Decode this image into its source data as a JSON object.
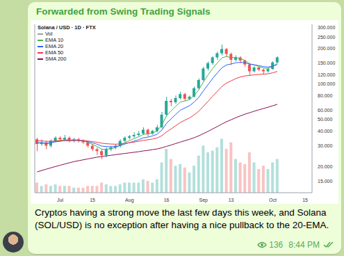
{
  "header": {
    "title": "Forwarded from Swing Trading Signals"
  },
  "chart_data": {
    "type": "candlestick",
    "title": "Solana / USD · 1D · FTX",
    "log": "y",
    "legend": "top-left",
    "ylim": [
      12,
      320
    ],
    "yticks": [
      {
        "value": 15,
        "label": "15.000"
      },
      {
        "value": 20,
        "label": "20.000"
      },
      {
        "value": 30,
        "label": "30.000"
      },
      {
        "value": 40,
        "label": "40.000"
      },
      {
        "value": 50,
        "label": "50.000"
      },
      {
        "value": 60,
        "label": "60.000"
      },
      {
        "value": 80,
        "label": "80.000"
      },
      {
        "value": 100,
        "label": "100.000"
      },
      {
        "value": 120,
        "label": "120.000"
      },
      {
        "value": 150,
        "label": "150.000"
      },
      {
        "value": 200,
        "label": "200.000"
      },
      {
        "value": 250,
        "label": "250.000"
      },
      {
        "value": 300,
        "label": "300.000"
      }
    ],
    "y2lim": [
      0,
      100
    ],
    "categories": [
      null,
      null,
      null,
      null,
      null,
      "Jul",
      null,
      null,
      null,
      null,
      null,
      null,
      "15",
      null,
      null,
      null,
      null,
      null,
      null,
      null,
      "Aug",
      null,
      null,
      null,
      null,
      null,
      null,
      null,
      "16",
      null,
      null,
      null,
      null,
      null,
      null,
      null,
      "Sep",
      null,
      null,
      null,
      null,
      null,
      "13",
      null,
      null,
      null,
      null,
      null,
      null,
      null,
      null,
      "Oct",
      null,
      null,
      null,
      null,
      null,
      null,
      "15",
      null
    ],
    "series": [
      {
        "type": "candlestick",
        "open": [
          34,
          31,
          32,
          30,
          33,
          35,
          34,
          35,
          33,
          34,
          33,
          32,
          30,
          28,
          27,
          25,
          28,
          29,
          30,
          33,
          35,
          36,
          37,
          38,
          41,
          38,
          40,
          43,
          55,
          72,
          70,
          76,
          82,
          75,
          78,
          92,
          108,
          135,
          150,
          168,
          182,
          198,
          180,
          160,
          168,
          158,
          146,
          128,
          138,
          132,
          128,
          134,
          152,
          null,
          null,
          null,
          null,
          null,
          null,
          null
        ],
        "high": [
          35,
          34,
          33,
          34,
          36,
          36,
          37,
          36,
          35,
          35,
          34,
          33,
          31,
          29,
          28,
          29,
          30,
          31,
          34,
          36,
          37,
          39,
          40,
          43,
          42,
          41,
          45,
          58,
          78,
          75,
          80,
          86,
          84,
          80,
          95,
          112,
          140,
          155,
          172,
          188,
          216,
          202,
          185,
          175,
          172,
          160,
          150,
          142,
          140,
          135,
          137,
          156,
          172,
          null,
          null,
          null,
          null,
          null,
          null,
          null
        ],
        "low": [
          27,
          30,
          28,
          29,
          32,
          33,
          33,
          32,
          32,
          32,
          31,
          29,
          27,
          25,
          23,
          24,
          27,
          28,
          29,
          32,
          34,
          35,
          36,
          37,
          36,
          37,
          39,
          42,
          53,
          65,
          68,
          74,
          72,
          73,
          77,
          90,
          105,
          130,
          145,
          160,
          175,
          170,
          145,
          155,
          150,
          140,
          118,
          125,
          128,
          120,
          125,
          132,
          150,
          null,
          null,
          null,
          null,
          null,
          null,
          null
        ],
        "close": [
          31,
          32,
          30,
          33,
          35,
          34,
          35,
          33,
          34,
          33,
          32,
          30,
          28,
          27,
          25,
          28,
          29,
          30,
          33,
          35,
          36,
          37,
          38,
          41,
          38,
          40,
          43,
          55,
          72,
          70,
          76,
          82,
          75,
          78,
          92,
          108,
          135,
          150,
          168,
          182,
          198,
          180,
          160,
          168,
          158,
          146,
          128,
          138,
          132,
          128,
          134,
          152,
          168,
          null,
          null,
          null,
          null,
          null,
          null,
          null
        ],
        "colors": [
          "#ef5350",
          "#26a69a",
          "#ef5350",
          "#26a69a",
          "#26a69a",
          "#ef5350",
          "#26a69a",
          "#ef5350",
          "#26a69a",
          "#ef5350",
          "#ef5350",
          "#ef5350",
          "#ef5350",
          "#ef5350",
          "#ef5350",
          "#26a69a",
          "#26a69a",
          "#26a69a",
          "#26a69a",
          "#26a69a",
          "#26a69a",
          "#26a69a",
          "#26a69a",
          "#26a69a",
          "#ef5350",
          "#26a69a",
          "#26a69a",
          "#26a69a",
          "#26a69a",
          "#ef5350",
          "#26a69a",
          "#26a69a",
          "#ef5350",
          "#26a69a",
          "#26a69a",
          "#26a69a",
          "#26a69a",
          "#26a69a",
          "#26a69a",
          "#26a69a",
          "#26a69a",
          "#ef5350",
          "#ef5350",
          "#26a69a",
          "#ef5350",
          "#ef5350",
          "#ef5350",
          "#26a69a",
          "#ef5350",
          "#ef5350",
          "#26a69a",
          "#26a69a",
          "#26a69a",
          null,
          null,
          null,
          null,
          null,
          null,
          null
        ]
      },
      {
        "name": "Vol",
        "type": "bar",
        "axis": "y2",
        "values": [
          6,
          4,
          5,
          4,
          5,
          4,
          4,
          4,
          3,
          3,
          3,
          4,
          4,
          4,
          6,
          5,
          4,
          4,
          5,
          6,
          6,
          6,
          6,
          8,
          7,
          6,
          8,
          18,
          26,
          20,
          16,
          17,
          15,
          12,
          16,
          22,
          28,
          24,
          25,
          27,
          32,
          26,
          30,
          20,
          18,
          17,
          24,
          18,
          14,
          16,
          14,
          18,
          20,
          null,
          null,
          null,
          null,
          null,
          null,
          null
        ]
      },
      {
        "name": "EMA 10",
        "type": "line",
        "color": "#4caf50",
        "values": [
          31.5,
          31.7,
          31.1,
          31.8,
          32.9,
          33.3,
          33.8,
          33.5,
          33.7,
          33.5,
          33.0,
          32.0,
          30.7,
          29.5,
          28.0,
          28.0,
          28.3,
          28.9,
          30.3,
          31.8,
          33.2,
          34.5,
          35.7,
          37.5,
          37.7,
          38.5,
          40.0,
          44.9,
          53.8,
          59.1,
          64.7,
          70.4,
          71.9,
          73.9,
          79.9,
          89.2,
          104.3,
          119.4,
          135.4,
          150.8,
          166.4,
          170.9,
          167.3,
          167.5,
          164.4,
          158.3,
          148.3,
          144.9,
          140.6,
          136.4,
          135.6,
          141.0,
          149.9,
          null,
          null,
          null,
          null,
          null,
          null,
          null
        ]
      },
      {
        "name": "EMA 20",
        "type": "line",
        "color": "#2962ff",
        "values": [
          31.8,
          31.8,
          31.5,
          31.8,
          32.4,
          32.7,
          33.1,
          33.1,
          33.3,
          33.2,
          33.0,
          32.5,
          31.7,
          30.9,
          29.8,
          29.5,
          29.4,
          29.5,
          30.1,
          31.0,
          31.9,
          32.8,
          33.7,
          35.0,
          35.5,
          36.3,
          37.5,
          40.7,
          46.3,
          50.6,
          55.2,
          60.0,
          62.7,
          65.5,
          70.3,
          77.1,
          87.5,
          98.8,
          111.3,
          124.0,
          137.3,
          145.0,
          147.7,
          151.3,
          152.5,
          151.4,
          147.2,
          145.5,
          143.1,
          140.4,
          139.2,
          141.6,
          146.3,
          null,
          null,
          null,
          null,
          null,
          null,
          null
        ]
      },
      {
        "name": "EMA 50",
        "type": "line",
        "color": "#f23645",
        "values": [
          33.0,
          32.9,
          32.7,
          32.7,
          32.9,
          33.0,
          33.2,
          33.2,
          33.3,
          33.3,
          33.2,
          32.9,
          32.5,
          32.1,
          31.5,
          31.2,
          31.0,
          30.9,
          31.1,
          31.4,
          31.8,
          32.2,
          32.7,
          33.3,
          33.7,
          34.2,
          34.9,
          36.5,
          39.2,
          41.6,
          44.3,
          47.2,
          49.4,
          51.6,
          54.7,
          58.8,
          64.7,
          71.3,
          78.8,
          86.7,
          95.3,
          101.8,
          106.3,
          111.1,
          114.7,
          117.1,
          118.0,
          119.6,
          120.5,
          121.1,
          122.1,
          124.4,
          127.7,
          null,
          null,
          null,
          null,
          null,
          null,
          null
        ]
      },
      {
        "name": "SMA 200",
        "type": "line",
        "color": "#880e4f",
        "values": [
          18,
          18.5,
          19,
          19.5,
          20,
          20.5,
          21,
          21.5,
          22,
          22.4,
          22.8,
          23.2,
          23.6,
          24,
          24.3,
          24.6,
          24.9,
          25.2,
          25.5,
          25.8,
          26.1,
          26.4,
          26.7,
          27.1,
          27.4,
          27.8,
          28.2,
          28.8,
          29.6,
          30.4,
          31.3,
          32.2,
          33.1,
          34.0,
          35.1,
          36.4,
          38,
          39.7,
          41.6,
          43.6,
          45.8,
          47.9,
          49.8,
          51.8,
          53.7,
          55.5,
          57.1,
          58.8,
          60.4,
          62,
          63.6,
          65.4,
          67.3,
          null,
          null,
          null,
          null,
          null,
          null,
          null
        ]
      }
    ]
  },
  "message": {
    "text": "Cryptos having a strong move the last few days this week, and Solana (SOL/USD) is no exception after having a nice pullback to the 20-EMA.",
    "views": 136,
    "time": "8:44 PM"
  }
}
